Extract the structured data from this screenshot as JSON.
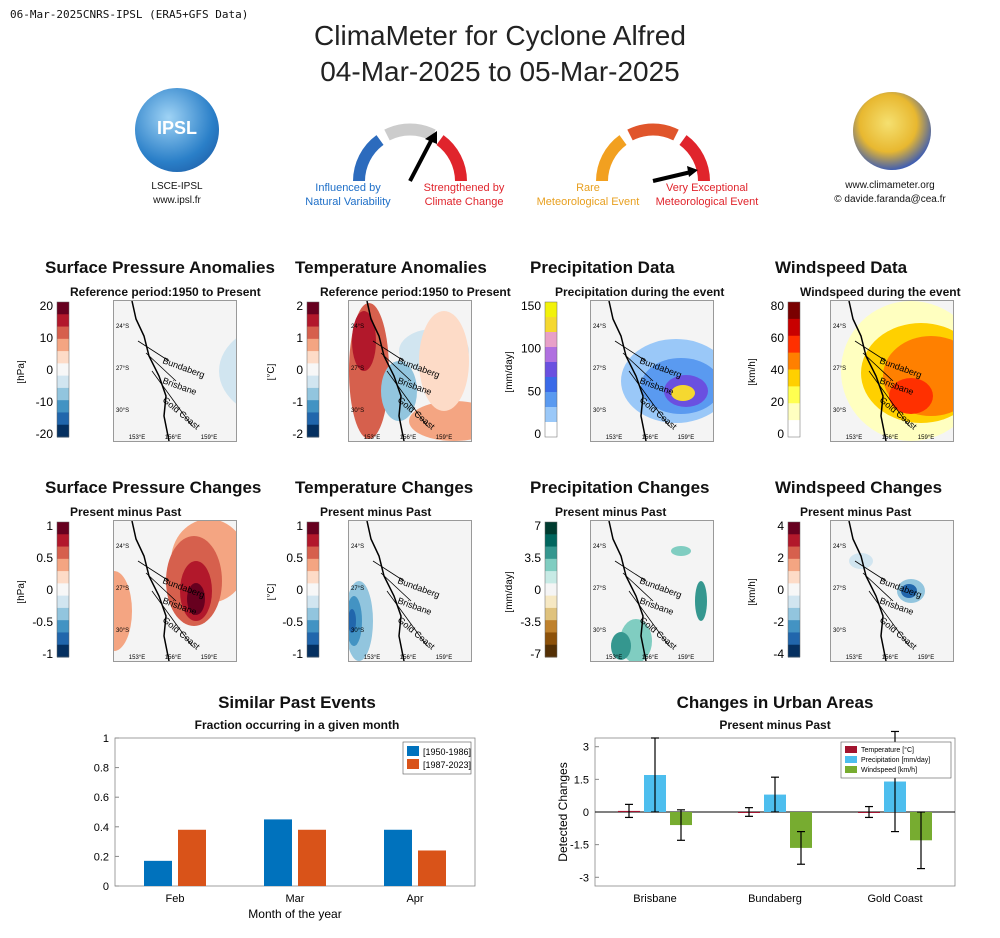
{
  "header": {
    "meta": "06-Mar-2025CNRS-IPSL (ERA5+GFS Data)",
    "title_line1": "ClimaMeter for Cyclone Alfred",
    "title_line2": "04-Mar-2025 to 05-Mar-2025"
  },
  "logos": {
    "ipsl_text": "IPSL",
    "ipsl_caption1": "LSCE-IPSL",
    "ipsl_caption2": "www.ipsl.fr",
    "cm_caption1": "www.climameter.org",
    "cm_caption2": "© davide.faranda@cea.fr"
  },
  "gauge1": {
    "left1": "Influenced by",
    "left2": "Natural Variability",
    "right1": "Strengthened by",
    "right2": "Climate Change",
    "colors": [
      "#2c6bbd",
      "#cccccc",
      "#e0242c"
    ]
  },
  "gauge2": {
    "left1": "Rare",
    "left2": "Meteorological Event",
    "right1": "Very Exceptional",
    "right2": "Meteorological Event",
    "colors": [
      "#f2a020",
      "#e0552b",
      "#e0242c"
    ]
  },
  "map_labels": {
    "lat": [
      "24°S",
      "27°S",
      "30°S"
    ],
    "lon": [
      "153°E",
      "156°E",
      "159°E"
    ],
    "cities": [
      "Bundaberg",
      "Brisbane",
      "Gold Coast"
    ]
  },
  "panels": [
    {
      "title": "Surface Pressure Anomalies",
      "subtitle": "Reference period:1950 to Present",
      "unit": "[hPa]",
      "ticks": [
        "20",
        "10",
        "0",
        "-10",
        "-20"
      ],
      "colors": [
        "#67001f",
        "#b2182b",
        "#d6604d",
        "#f4a582",
        "#fddbc7",
        "#f7f7f7",
        "#d1e5f0",
        "#92c5de",
        "#4393c3",
        "#2166ac",
        "#053061"
      ]
    },
    {
      "title": "Temperature Anomalies",
      "subtitle": "Reference period:1950 to Present",
      "unit": "[°C]",
      "ticks": [
        "2",
        "1",
        "0",
        "-1",
        "-2"
      ],
      "colors": [
        "#67001f",
        "#b2182b",
        "#d6604d",
        "#f4a582",
        "#fddbc7",
        "#f7f7f7",
        "#d1e5f0",
        "#92c5de",
        "#4393c3",
        "#2166ac",
        "#053061"
      ]
    },
    {
      "title": "Precipitation Data",
      "subtitle": "Precipitation during the event",
      "unit": "[mm/day]",
      "ticks": [
        "150",
        "100",
        "50",
        "0"
      ],
      "colors": [
        "#f2f20a",
        "#f5d830",
        "#e8a0c8",
        "#b070e0",
        "#6a50e0",
        "#3a6ae8",
        "#5a9af0",
        "#9ac8f8",
        "#ffffff"
      ]
    },
    {
      "title": "Windspeed Data",
      "subtitle": "Windspeed during the event",
      "unit": "[km/h]",
      "ticks": [
        "80",
        "60",
        "40",
        "20",
        "0"
      ],
      "colors": [
        "#7a0000",
        "#c80000",
        "#ff3000",
        "#ff8000",
        "#ffd000",
        "#ffff50",
        "#ffffc0",
        "#ffffff"
      ]
    },
    {
      "title": "Surface Pressure Changes",
      "subtitle": "Present minus Past",
      "unit": "[hPa]",
      "ticks": [
        "1",
        "0.5",
        "0",
        "-0.5",
        "-1"
      ],
      "colors": [
        "#67001f",
        "#b2182b",
        "#d6604d",
        "#f4a582",
        "#fddbc7",
        "#f7f7f7",
        "#d1e5f0",
        "#92c5de",
        "#4393c3",
        "#2166ac",
        "#053061"
      ]
    },
    {
      "title": "Temperature Changes",
      "subtitle": "Present minus Past",
      "unit": "[°C]",
      "ticks": [
        "1",
        "0.5",
        "0",
        "-0.5",
        "-1"
      ],
      "colors": [
        "#67001f",
        "#b2182b",
        "#d6604d",
        "#f4a582",
        "#fddbc7",
        "#f7f7f7",
        "#d1e5f0",
        "#92c5de",
        "#4393c3",
        "#2166ac",
        "#053061"
      ]
    },
    {
      "title": "Precipitation Changes",
      "subtitle": "Present minus Past",
      "unit": "[mm/day]",
      "ticks": [
        "7",
        "3.5",
        "0",
        "-3.5",
        "-7"
      ],
      "colors": [
        "#003c30",
        "#01665e",
        "#35978f",
        "#80cdc1",
        "#c7eae5",
        "#f5f5f5",
        "#f6e8c3",
        "#dfc27d",
        "#bf812d",
        "#8c510a",
        "#543005"
      ]
    },
    {
      "title": "Windspeed Changes",
      "subtitle": "Present minus Past",
      "unit": "[km/h]",
      "ticks": [
        "4",
        "2",
        "0",
        "-2",
        "-4"
      ],
      "colors": [
        "#67001f",
        "#b2182b",
        "#d6604d",
        "#f4a582",
        "#fddbc7",
        "#f7f7f7",
        "#d1e5f0",
        "#92c5de",
        "#4393c3",
        "#2166ac",
        "#053061"
      ]
    }
  ],
  "chart_data": [
    {
      "type": "bar",
      "title": "Similar Past Events",
      "subtitle": "Fraction occurring in a given month",
      "xlabel": "Month of the year",
      "ylabel": "",
      "categories": [
        "Feb",
        "Mar",
        "Apr"
      ],
      "series": [
        {
          "name": "[1950-1986]",
          "color": "#0072bd",
          "values": [
            0.17,
            0.45,
            0.38
          ]
        },
        {
          "name": "[1987-2023]",
          "color": "#d95319",
          "values": [
            0.38,
            0.38,
            0.24
          ]
        }
      ],
      "ylim": [
        0,
        1
      ],
      "yticks": [
        "1",
        "0.8",
        "0.6",
        "0.4",
        "0.2",
        "0"
      ],
      "legend": "top-right"
    },
    {
      "type": "bar",
      "title": "Changes in Urban Areas",
      "subtitle": "Present minus Past",
      "xlabel": "",
      "ylabel": "Detected Changes",
      "categories": [
        "Brisbane",
        "Bundaberg",
        "Gold Coast"
      ],
      "series": [
        {
          "name": "Temperature [°C]",
          "color": "#a2142f",
          "values": [
            0.05,
            0.0,
            0.0
          ],
          "err": [
            0.3,
            0.2,
            0.25
          ]
        },
        {
          "name": "Precipitation [mm/day]",
          "color": "#4dbeee",
          "values": [
            1.7,
            0.8,
            1.4
          ],
          "err": [
            1.7,
            0.8,
            2.3
          ]
        },
        {
          "name": "Windspeed [km/h]",
          "color": "#77ac30",
          "values": [
            -0.6,
            -1.65,
            -1.3
          ],
          "err": [
            0.7,
            0.75,
            1.3
          ]
        }
      ],
      "ylim": [
        -3.4,
        3.4
      ],
      "yticks": [
        "3",
        "1.5",
        "0",
        "-1.5",
        "-3"
      ],
      "legend": "top-right"
    }
  ]
}
